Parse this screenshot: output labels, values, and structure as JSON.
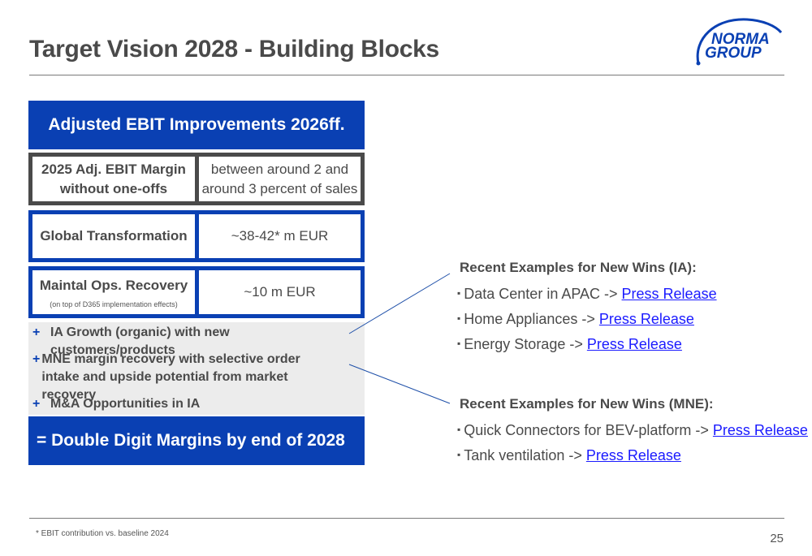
{
  "title": "Target Vision 2028 - Building Blocks",
  "logo": {
    "line1": "NORMA",
    "line2": "GROUP"
  },
  "header": "Adjusted EBIT Improvements 2026ff.",
  "margin_row": {
    "label": "2025 Adj. EBIT Margin without one-offs",
    "value": "between around 2 and around 3 percent of sales"
  },
  "gt_row": {
    "label": "Global Transformation",
    "value": "~38-42* m EUR"
  },
  "ops_row": {
    "label": "Maintal Ops. Recovery",
    "note": "(on top of D365 implementation effects)",
    "value": "~10 m EUR"
  },
  "plus_items": [
    "IA Growth (organic) with new customers/products",
    "MNE margin recovery with selective order intake and upside potential from market recovery",
    "M&A Opportunities in IA"
  ],
  "plus_sign": "+",
  "footer": "= Double Digit Margins by end of 2028",
  "ia": {
    "heading": "Recent Examples for New Wins (IA):",
    "items": [
      {
        "text": "Data Center in APAC -> ",
        "link": "Press Release"
      },
      {
        "text": "Home Appliances -> ",
        "link": "Press Release"
      },
      {
        "text": "Energy Storage -> ",
        "link": "Press Release"
      }
    ]
  },
  "mne": {
    "heading": "Recent Examples for New Wins (MNE):",
    "items": [
      {
        "text": "Quick Connectors for BEV-platform -> ",
        "link": "Press Release"
      },
      {
        "text": "Tank ventilation -> ",
        "link": "Press Release"
      }
    ]
  },
  "bullet_glyph": "▪",
  "footnote": "* EBIT contribution vs. baseline 2024",
  "page_number": "25",
  "colors": {
    "brand_blue": "#0a40b3",
    "text_grey": "#4a4a4a",
    "link_blue": "#1a1aff"
  }
}
